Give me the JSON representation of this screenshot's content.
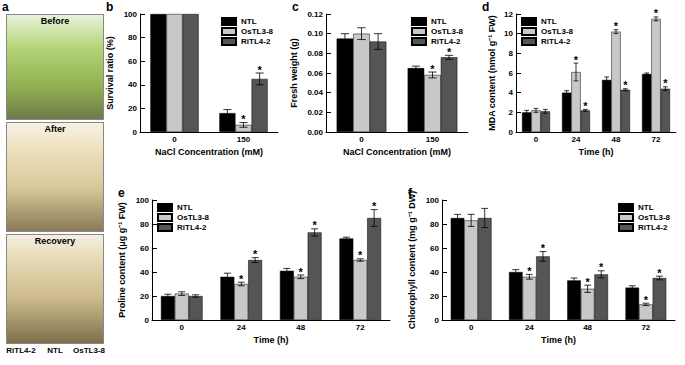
{
  "photo_panel": {
    "title": "a",
    "captions": [
      "Before",
      "After",
      "Recovery"
    ],
    "lines": [
      "RiTL4-2",
      "NTL",
      "OsTL3-8"
    ]
  },
  "chart_data": [
    {
      "title": "b",
      "type": "bar",
      "xlabel": "NaCl Concentration (mM)",
      "ylabel": "Survival ratio (%)",
      "categories": [
        "0",
        "150"
      ],
      "series": [
        {
          "name": "NTL",
          "color": "#000000",
          "values": [
            100,
            16
          ],
          "errors": [
            0,
            3
          ]
        },
        {
          "name": "OsTL3-8",
          "color": "#c8c8c8",
          "values": [
            100,
            6
          ],
          "errors": [
            0,
            2
          ]
        },
        {
          "name": "RiTL4-2",
          "color": "#555555",
          "values": [
            100,
            45
          ],
          "errors": [
            0,
            5
          ]
        }
      ],
      "ylim": [
        0,
        100
      ],
      "yticks": [
        0,
        20,
        40,
        60,
        80,
        100
      ],
      "grid": false,
      "legend": "upper right",
      "annotations": [
        {
          "series": "OsTL3-8",
          "category": "150",
          "text": "*"
        },
        {
          "series": "RiTL4-2",
          "category": "150",
          "text": "*"
        }
      ]
    },
    {
      "title": "c",
      "type": "bar",
      "xlabel": "NaCl Concentration (mM)",
      "ylabel": "Fresh weight (g)",
      "categories": [
        "0",
        "150"
      ],
      "series": [
        {
          "name": "NTL",
          "color": "#000000",
          "values": [
            0.095,
            0.065
          ],
          "errors": [
            0.005,
            0.002
          ]
        },
        {
          "name": "OsTL3-8",
          "color": "#c8c8c8",
          "values": [
            0.1,
            0.058
          ],
          "errors": [
            0.006,
            0.003
          ]
        },
        {
          "name": "RiTL4-2",
          "color": "#555555",
          "values": [
            0.092,
            0.076
          ],
          "errors": [
            0.008,
            0.002
          ]
        }
      ],
      "ylim": [
        0,
        0.12
      ],
      "yticks": [
        {
          "value": 0,
          "label": "0.00"
        },
        {
          "value": 0.02,
          "label": "0.02"
        },
        {
          "value": 0.04,
          "label": "0.04"
        },
        {
          "value": 0.06,
          "label": "0.06"
        },
        {
          "value": 0.08,
          "label": "0.08"
        },
        {
          "value": 0.1,
          "label": "0.10"
        },
        {
          "value": 0.12,
          "label": "0.12"
        }
      ],
      "grid": false,
      "legend": "upper right",
      "annotations": [
        {
          "series": "OsTL3-8",
          "category": "150",
          "text": "*"
        },
        {
          "series": "RiTL4-2",
          "category": "150",
          "text": "*"
        }
      ]
    },
    {
      "title": "d",
      "type": "bar",
      "xlabel": "Time (h)",
      "ylabel": "MDA content (nmol g⁻¹ FW)",
      "categories": [
        "0",
        "24",
        "48",
        "72"
      ],
      "series": [
        {
          "name": "NTL",
          "color": "#000000",
          "values": [
            2.0,
            4.0,
            5.3,
            5.9
          ],
          "errors": [
            0.2,
            0.2,
            0.3,
            0.1
          ]
        },
        {
          "name": "OsTL3-8",
          "color": "#c8c8c8",
          "values": [
            2.2,
            6.1,
            10.2,
            11.5
          ],
          "errors": [
            0.2,
            0.9,
            0.2,
            0.2
          ]
        },
        {
          "name": "RiTL4-2",
          "color": "#555555",
          "values": [
            2.1,
            2.2,
            4.3,
            4.4
          ],
          "errors": [
            0.2,
            0.1,
            0.1,
            0.2
          ]
        }
      ],
      "ylim": [
        0,
        12
      ],
      "yticks": [
        0,
        2,
        4,
        6,
        8,
        10,
        12
      ],
      "grid": false,
      "legend": "upper left",
      "annotations": [
        {
          "series": "OsTL3-8",
          "category": "24",
          "text": "*"
        },
        {
          "series": "OsTL3-8",
          "category": "48",
          "text": "*"
        },
        {
          "series": "OsTL3-8",
          "category": "72",
          "text": "*"
        },
        {
          "series": "RiTL4-2",
          "category": "24",
          "text": "*"
        },
        {
          "series": "RiTL4-2",
          "category": "48",
          "text": "*"
        },
        {
          "series": "RiTL4-2",
          "category": "72",
          "text": "*"
        }
      ]
    },
    {
      "title": "e",
      "type": "bar",
      "xlabel": "Time (h)",
      "ylabel": "Proline content (μg g⁻¹ FW)",
      "categories": [
        "0",
        "24",
        "48",
        "72"
      ],
      "series": [
        {
          "name": "NTL",
          "color": "#000000",
          "values": [
            20,
            36,
            41,
            68
          ],
          "errors": [
            1.5,
            3,
            2,
            1
          ]
        },
        {
          "name": "OsTL3-8",
          "color": "#c8c8c8",
          "values": [
            22,
            30,
            36,
            50
          ],
          "errors": [
            1.5,
            1.5,
            1.5,
            1
          ]
        },
        {
          "name": "RiTL4-2",
          "color": "#555555",
          "values": [
            20,
            50,
            73,
            85
          ],
          "errors": [
            1,
            2,
            3,
            7
          ]
        }
      ],
      "ylim": [
        0,
        100
      ],
      "yticks": [
        0,
        20,
        40,
        60,
        80,
        100
      ],
      "grid": false,
      "legend": "upper left",
      "annotations": [
        {
          "series": "OsTL3-8",
          "category": "24",
          "text": "*"
        },
        {
          "series": "OsTL3-8",
          "category": "48",
          "text": "*"
        },
        {
          "series": "OsTL3-8",
          "category": "72",
          "text": "*"
        },
        {
          "series": "RiTL4-2",
          "category": "24",
          "text": "*"
        },
        {
          "series": "RiTL4-2",
          "category": "48",
          "text": "*"
        },
        {
          "series": "RiTL4-2",
          "category": "72",
          "text": "*"
        }
      ]
    },
    {
      "title": "f",
      "type": "bar",
      "xlabel": "Time (h)",
      "ylabel": "Chlorophyll content (mg g⁻¹ DW)",
      "categories": [
        "0",
        "24",
        "48",
        "72"
      ],
      "series": [
        {
          "name": "NTL",
          "color": "#000000",
          "values": [
            85,
            40,
            33,
            27
          ],
          "errors": [
            3,
            2,
            2,
            1.5
          ]
        },
        {
          "name": "OsTL3-8",
          "color": "#c8c8c8",
          "values": [
            83,
            36,
            26,
            13
          ],
          "errors": [
            5,
            2,
            3,
            1
          ]
        },
        {
          "name": "RiTL4-2",
          "color": "#555555",
          "values": [
            85,
            53,
            38,
            35
          ],
          "errors": [
            8,
            4,
            3,
            1.5
          ]
        }
      ],
      "ylim": [
        0,
        100
      ],
      "yticks": [
        0,
        20,
        40,
        60,
        80,
        100
      ],
      "grid": false,
      "legend": "upper right",
      "annotations": [
        {
          "series": "OsTL3-8",
          "category": "24",
          "text": "*"
        },
        {
          "series": "OsTL3-8",
          "category": "48",
          "text": "*"
        },
        {
          "series": "OsTL3-8",
          "category": "72",
          "text": "*"
        },
        {
          "series": "RiTL4-2",
          "category": "24",
          "text": "*"
        },
        {
          "series": "RiTL4-2",
          "category": "48",
          "text": "*"
        },
        {
          "series": "RiTL4-2",
          "category": "72",
          "text": "*"
        }
      ]
    }
  ]
}
